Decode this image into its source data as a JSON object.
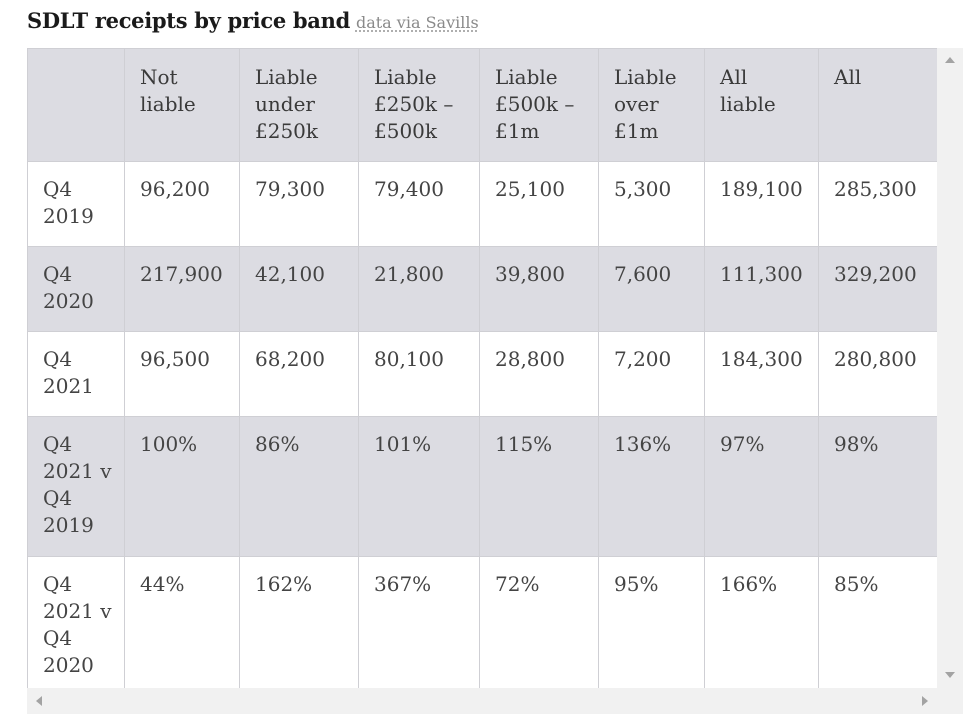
{
  "header": {
    "title": "SDLT receipts by price band",
    "source_link": "data via Savills"
  },
  "table": {
    "columns": [
      "",
      "Not liable",
      "Liable under £250k",
      "Liable £250k – £500k",
      "Liable £500k – £1m",
      "Liable over £1m",
      "All liable",
      "All"
    ],
    "rows": [
      {
        "label": "Q4 2019",
        "cells": [
          "96,200",
          "79,300",
          "79,400",
          "25,100",
          "5,300",
          "189,100",
          "285,300"
        ]
      },
      {
        "label": "Q4 2020",
        "cells": [
          "217,900",
          "42,100",
          "21,800",
          "39,800",
          "7,600",
          "111,300",
          "329,200"
        ]
      },
      {
        "label": "Q4 2021",
        "cells": [
          "96,500",
          "68,200",
          "80,100",
          "28,800",
          "7,200",
          "184,300",
          "280,800"
        ]
      },
      {
        "label": "Q4 2021 v Q4 2019",
        "cells": [
          "100%",
          "86%",
          "101%",
          "115%",
          "136%",
          "97%",
          "98%"
        ]
      },
      {
        "label": "Q4 2021 v Q4 2020",
        "cells": [
          "44%",
          "162%",
          "367%",
          "72%",
          "95%",
          "166%",
          "85%"
        ]
      }
    ]
  },
  "icons": {
    "scroll_up": "chevron-up-icon",
    "scroll_down": "chevron-down-icon",
    "scroll_left": "chevron-left-icon",
    "scroll_right": "chevron-right-icon"
  },
  "colors": {
    "header_bg": "#dcdce2",
    "shaded_row_bg": "#dcdce2",
    "border": "#cfcfd4",
    "source_text": "#8a8a8a"
  }
}
